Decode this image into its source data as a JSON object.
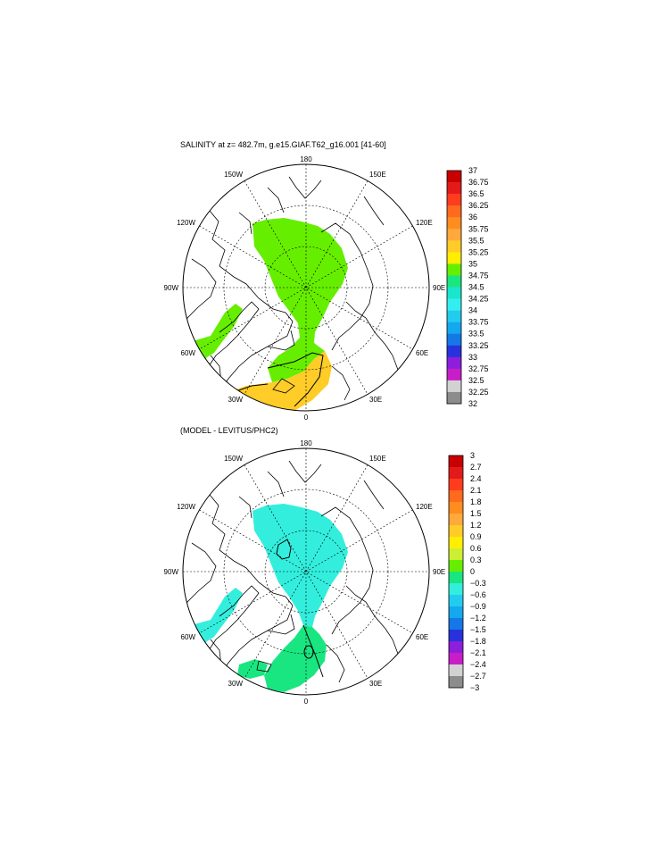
{
  "panels": [
    {
      "id": "salinity",
      "title": "SALINITY at z= 482.7m, g.e15.GIAF.T62_g16.001 [41-60]",
      "lon_labels": [
        "180",
        "150E",
        "120E",
        "90E",
        "60E",
        "30E",
        "0",
        "30W",
        "60W",
        "90W",
        "120W",
        "150W"
      ],
      "colorbar": {
        "levels": [
          "37",
          "36.75",
          "36.5",
          "36.25",
          "36",
          "35.75",
          "35.5",
          "35.25",
          "35",
          "34.75",
          "34.5",
          "34.25",
          "34",
          "33.75",
          "33.5",
          "33.25",
          "33",
          "32.75",
          "32.5",
          "32.25",
          "32"
        ],
        "colors": [
          "#c80000",
          "#e41a1a",
          "#ff3c1e",
          "#ff6a1e",
          "#ff8c1e",
          "#ffa83c",
          "#ffcc28",
          "#ffee00",
          "#66ee00",
          "#19e680",
          "#19e6cc",
          "#33eeee",
          "#22ccee",
          "#14a8ee",
          "#1478e6",
          "#2832dc",
          "#8c1edc",
          "#c81ec8",
          "#d2d2d2",
          "#8c8c8c"
        ]
      }
    },
    {
      "id": "difference",
      "title": "(MODEL - LEVITUS/PHC2)",
      "lon_labels": [
        "180",
        "150E",
        "120E",
        "90E",
        "60E",
        "30E",
        "0",
        "30W",
        "60W",
        "90W",
        "120W",
        "150W"
      ],
      "colorbar": {
        "levels": [
          "3",
          "2.7",
          "2.4",
          "2.1",
          "1.8",
          "1.5",
          "1.2",
          "0.9",
          "0.6",
          "0.3",
          "0",
          "−0.3",
          "−0.6",
          "−0.9",
          "−1.2",
          "−1.5",
          "−1.8",
          "−2.1",
          "−2.4",
          "−2.7",
          "−3"
        ],
        "colors": [
          "#c80000",
          "#e41a1a",
          "#ff3c1e",
          "#ff6a1e",
          "#ff8c1e",
          "#ffa83c",
          "#ffcc28",
          "#ffee00",
          "#ccee33",
          "#66ee00",
          "#19e680",
          "#33eedd",
          "#22ccee",
          "#14a8ee",
          "#1478e6",
          "#2832dc",
          "#8c1edc",
          "#c81ec8",
          "#d2d2d2",
          "#8c8c8c"
        ]
      }
    }
  ],
  "colors": {
    "ocean_panel1": "#66ee00",
    "ocean_panel2": "#33eedd",
    "warm_patch": "#ffcc28",
    "land": "#ffffff"
  }
}
